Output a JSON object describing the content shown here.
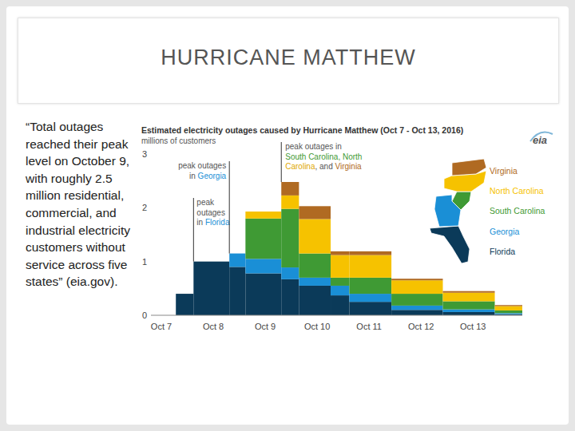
{
  "slide": {
    "title": "HURRICANE MATTHEW",
    "quote": "“Total outages reached their peak level on October 9, with roughly 2.5 million residential, commercial, and industrial electricity customers without service across five states” (eia.gov)."
  },
  "chart_data": {
    "type": "area",
    "title": "Estimated electricity outages caused by Hurricane Matthew (Oct 7 - Oct 13, 2016)",
    "subtitle": "millions of customers",
    "logo": "eia",
    "x": [
      0.28,
      0.62,
      1.31,
      1.62,
      2.31,
      2.65,
      3.26,
      3.62,
      4.43,
      5.42,
      6.42
    ],
    "xlim": [
      -0.2,
      6.95
    ],
    "xticks": [
      {
        "value": 0,
        "label": "Oct 7"
      },
      {
        "value": 1,
        "label": "Oct 8"
      },
      {
        "value": 2,
        "label": "Oct 9"
      },
      {
        "value": 3,
        "label": "Oct 10"
      },
      {
        "value": 4,
        "label": "Oct 11"
      },
      {
        "value": 5,
        "label": "Oct 12"
      },
      {
        "value": 6,
        "label": "Oct 13"
      }
    ],
    "ylim": [
      0,
      3
    ],
    "yticks": [
      0,
      1,
      2,
      3
    ],
    "grid": false,
    "stacked": true,
    "line_style": "step",
    "legend": "right",
    "series": [
      {
        "name": "Florida",
        "color": "#0b3a59",
        "values": [
          0.4,
          1.0,
          0.9,
          0.78,
          0.67,
          0.55,
          0.37,
          0.25,
          0.1,
          0.06,
          0.02
        ]
      },
      {
        "name": "Georgia",
        "color": "#1a8fd6",
        "values": [
          0,
          0,
          0.25,
          0.27,
          0.22,
          0.15,
          0.18,
          0.15,
          0.08,
          0.05,
          0.02
        ]
      },
      {
        "name": "South Carolina",
        "color": "#3f9a34",
        "values": [
          0,
          0,
          0,
          0.75,
          1.09,
          0.45,
          0.15,
          0.3,
          0.22,
          0.15,
          0.05
        ]
      },
      {
        "name": "North Carolina",
        "color": "#f6c200",
        "values": [
          0,
          0,
          0,
          0.13,
          0.25,
          0.64,
          0.42,
          0.42,
          0.25,
          0.16,
          0.08
        ]
      },
      {
        "name": "Virginia",
        "color": "#b06a22",
        "values": [
          0,
          0,
          0,
          0,
          0.25,
          0.24,
          0.07,
          0.07,
          0.03,
          0.03,
          0.02
        ]
      }
    ],
    "annotations": [
      {
        "x": 0.62,
        "lines": [
          [
            "peak"
          ],
          [
            "outages"
          ],
          [
            "in ",
            {
              "text": "Florida",
              "color": "#1a8fd6"
            }
          ]
        ]
      },
      {
        "x": 1.31,
        "lines": [
          [
            "peak outages"
          ],
          [
            "in ",
            {
              "text": "Georgia",
              "color": "#1a8fd6"
            }
          ]
        ]
      },
      {
        "x": 2.31,
        "lines": [
          [
            "peak outages in"
          ],
          [
            {
              "text": "South Carolina, North",
              "color": "#3f9a34"
            }
          ],
          [
            {
              "text": "Carolina",
              "color": "#e0a800"
            },
            ", and ",
            {
              "text": "Virginia",
              "color": "#b06a22"
            }
          ]
        ]
      }
    ]
  }
}
